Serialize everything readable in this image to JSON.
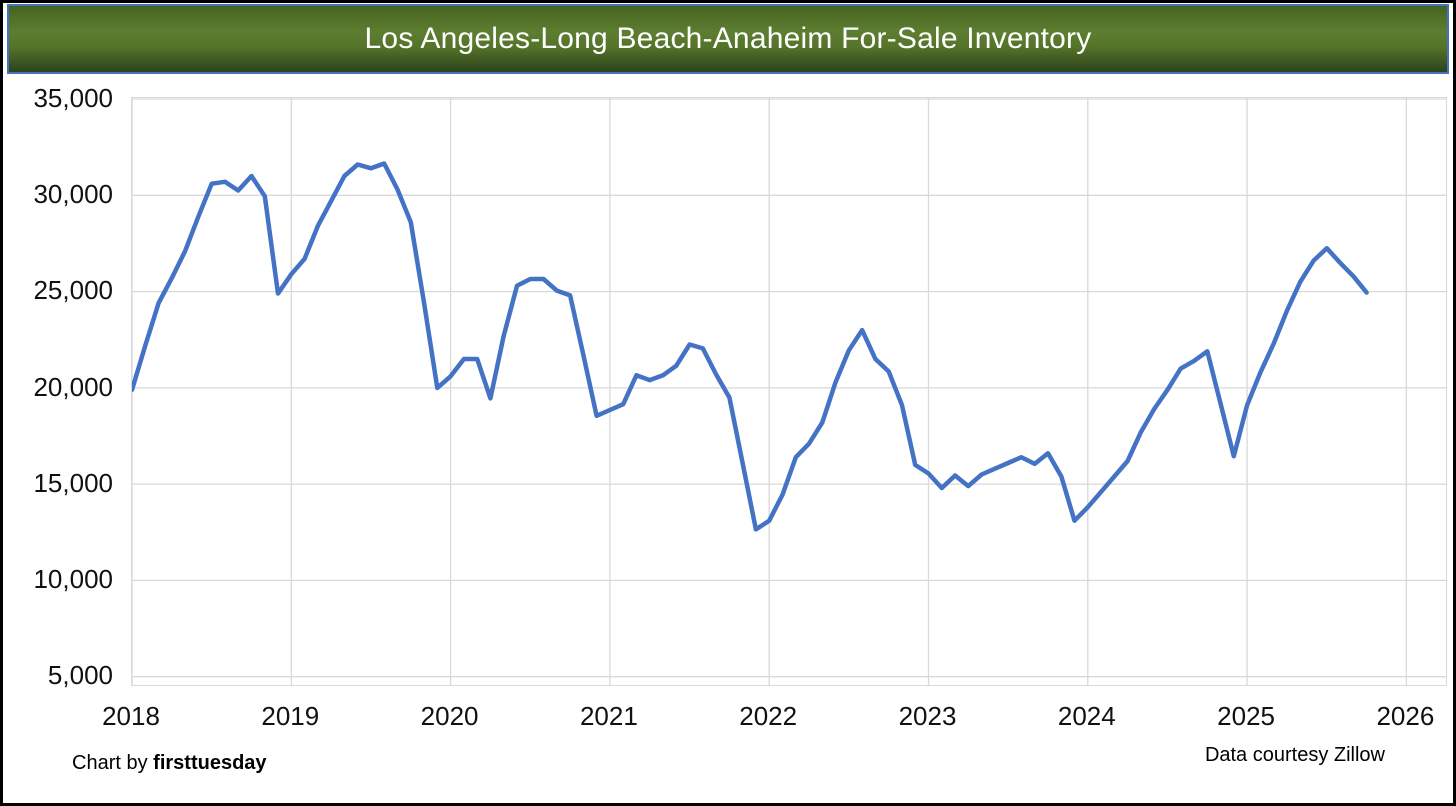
{
  "title": "Los Angeles-Long Beach-Anaheim For-Sale Inventory",
  "footer": {
    "left_prefix": "Chart by ",
    "left_brand": "firsttuesday",
    "right": "Data courtesy Zillow"
  },
  "y_axis": {
    "ticks": [
      "35,000",
      "30,000",
      "25,000",
      "20,000",
      "15,000",
      "10,000",
      "5,000"
    ]
  },
  "x_axis": {
    "ticks": [
      "2018",
      "2019",
      "2020",
      "2021",
      "2022",
      "2023",
      "2024",
      "2025",
      "2026"
    ]
  },
  "colors": {
    "line": "#4472C4",
    "gridline": "#D9D9D9",
    "banner_border": "#4472C4",
    "banner_green_mid": "#5d7e31",
    "banner_text": "#FFFFFF",
    "frame_border": "#000000"
  },
  "chart_data": {
    "type": "line",
    "title": "Los Angeles-Long Beach-Anaheim For-Sale Inventory",
    "xlabel": "",
    "ylabel": "",
    "ylim": [
      5000,
      35000
    ],
    "y_tick_interval": 5000,
    "x_range_axis": [
      "2018-01",
      "2026-03"
    ],
    "grid": true,
    "legend": "none",
    "line_color": "#4472C4",
    "months": [
      "2018-01",
      "2018-02",
      "2018-03",
      "2018-04",
      "2018-05",
      "2018-06",
      "2018-07",
      "2018-08",
      "2018-09",
      "2018-10",
      "2018-11",
      "2018-12",
      "2019-01",
      "2019-02",
      "2019-03",
      "2019-04",
      "2019-05",
      "2019-06",
      "2019-07",
      "2019-08",
      "2019-09",
      "2019-10",
      "2019-11",
      "2019-12",
      "2020-01",
      "2020-02",
      "2020-03",
      "2020-04",
      "2020-05",
      "2020-06",
      "2020-07",
      "2020-08",
      "2020-09",
      "2020-10",
      "2020-11",
      "2020-12",
      "2021-01",
      "2021-02",
      "2021-03",
      "2021-04",
      "2021-05",
      "2021-06",
      "2021-07",
      "2021-08",
      "2021-09",
      "2021-10",
      "2021-11",
      "2021-12",
      "2022-01",
      "2022-02",
      "2022-03",
      "2022-04",
      "2022-05",
      "2022-06",
      "2022-07",
      "2022-08",
      "2022-09",
      "2022-10",
      "2022-11",
      "2022-12",
      "2023-01",
      "2023-02",
      "2023-03",
      "2023-04",
      "2023-05",
      "2023-06",
      "2023-07",
      "2023-08",
      "2023-09",
      "2023-10",
      "2023-11",
      "2023-12",
      "2024-01",
      "2024-02",
      "2024-03",
      "2024-04",
      "2024-05",
      "2024-06",
      "2024-07",
      "2024-08",
      "2024-09",
      "2024-10",
      "2024-11",
      "2024-12",
      "2025-01",
      "2025-02",
      "2025-03",
      "2025-04",
      "2025-05",
      "2025-06",
      "2025-07",
      "2025-08",
      "2025-09",
      "2025-10"
    ],
    "values": [
      19900,
      22200,
      24400,
      25700,
      27100,
      28900,
      30600,
      30700,
      30250,
      31000,
      29950,
      24900,
      25900,
      26700,
      28400,
      29700,
      31000,
      31600,
      31400,
      31650,
      30300,
      28600,
      24400,
      20000,
      20600,
      21500,
      21500,
      19450,
      22700,
      25300,
      25650,
      25650,
      25050,
      24800,
      21700,
      18550,
      18850,
      19150,
      20650,
      20400,
      20650,
      21150,
      22250,
      22050,
      20700,
      19500,
      16100,
      12650,
      13100,
      14450,
      16400,
      17100,
      18200,
      20300,
      21950,
      23000,
      21500,
      20850,
      19100,
      16000,
      15550,
      14800,
      15450,
      14900,
      15500,
      15800,
      16100,
      16400,
      16050,
      16600,
      15400,
      13100,
      13800,
      14600,
      15400,
      16200,
      17700,
      18900,
      19900,
      21000,
      21400,
      21900,
      19200,
      16450,
      19100,
      20800,
      22300,
      24000,
      25500,
      26600,
      27250,
      26500,
      25800,
      24950
    ]
  }
}
